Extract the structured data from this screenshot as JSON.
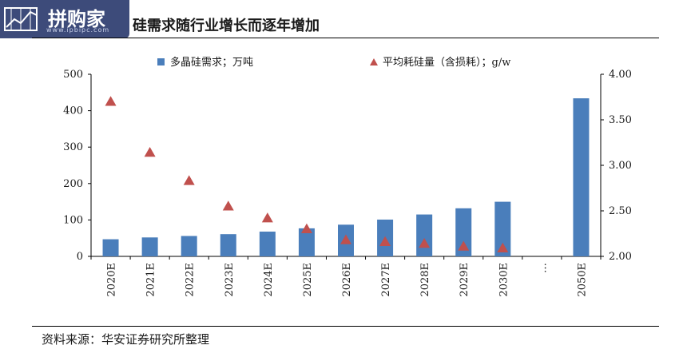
{
  "header": {
    "logo_text": "拼购家",
    "logo_url": "www.ipbipc.com",
    "title": "硅需求随行业增长而逐年增加"
  },
  "footer": {
    "source": "资料来源：华安证券研究所整理"
  },
  "colors": {
    "bar": "#4a7ebb",
    "marker": "#c0504d",
    "axis": "#000000"
  },
  "chart_data": {
    "type": "bar",
    "categories": [
      "2020E",
      "2021E",
      "2022E",
      "2023E",
      "2024E",
      "2025E",
      "2026E",
      "2027E",
      "2028E",
      "2029E",
      "2030E",
      "…",
      "2050E"
    ],
    "series": [
      {
        "name": "多晶硅需求；万吨",
        "type": "bar",
        "axis": "left",
        "values": [
          47,
          52,
          56,
          61,
          68,
          77,
          87,
          101,
          115,
          132,
          150,
          null,
          434
        ]
      },
      {
        "name": "平均耗硅量（含损耗）；g/w",
        "type": "scatter",
        "marker": "triangle",
        "axis": "right",
        "values": [
          3.7,
          3.14,
          2.83,
          2.55,
          2.42,
          2.3,
          2.18,
          2.16,
          2.14,
          2.11,
          2.09,
          null,
          null
        ]
      }
    ],
    "y_left": {
      "min": 0,
      "max": 500,
      "ticks": [
        "0",
        "100",
        "200",
        "300",
        "400",
        "500"
      ]
    },
    "y_right": {
      "min": 2.0,
      "max": 4.0,
      "ticks": [
        "2.00",
        "2.50",
        "3.00",
        "3.50",
        "4.00"
      ]
    },
    "legend_position": "top-center",
    "grid": false
  }
}
